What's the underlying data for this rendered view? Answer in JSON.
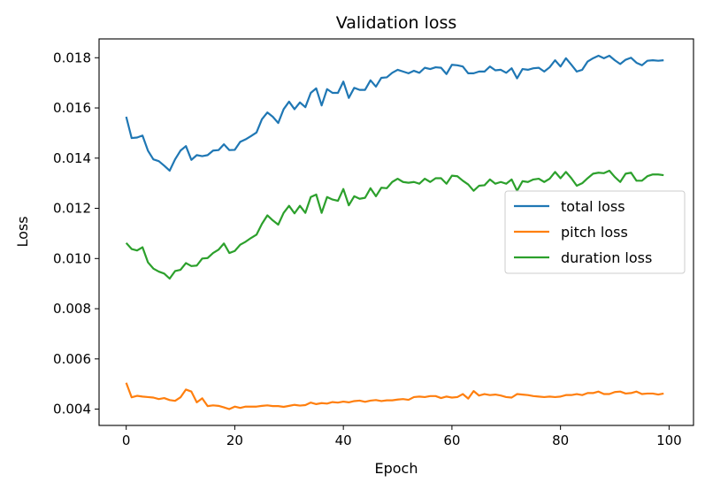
{
  "chart_data": {
    "type": "line",
    "title": "Validation loss",
    "xlabel": "Epoch",
    "ylabel": "Loss",
    "xlim": [
      -5,
      104.5
    ],
    "ylim": [
      0.00335,
      0.01875
    ],
    "xticks": [
      0,
      20,
      40,
      60,
      80,
      100
    ],
    "xtick_labels": [
      "0",
      "20",
      "40",
      "60",
      "80",
      "100"
    ],
    "yticks": [
      0.004,
      0.006,
      0.008,
      0.01,
      0.012,
      0.014,
      0.016,
      0.018
    ],
    "ytick_labels": [
      "0.004",
      "0.006",
      "0.008",
      "0.010",
      "0.012",
      "0.014",
      "0.016",
      "0.018"
    ],
    "grid": false,
    "legend_position": "center-right",
    "series": [
      {
        "name": "total loss",
        "color": "#1f77b4",
        "x": [
          0,
          1,
          2,
          3,
          4,
          5,
          6,
          7,
          8,
          9,
          10,
          11,
          12,
          13,
          14,
          15,
          16,
          17,
          18,
          19,
          20,
          21,
          22,
          23,
          24,
          25,
          26,
          27,
          28,
          29,
          30,
          31,
          32,
          33,
          34,
          35,
          36,
          37,
          38,
          39,
          40,
          41,
          42,
          43,
          44,
          45,
          46,
          47,
          48,
          49,
          50,
          51,
          52,
          53,
          54,
          55,
          56,
          57,
          58,
          59,
          60,
          61,
          62,
          63,
          64,
          65,
          66,
          67,
          68,
          69,
          70,
          71,
          72,
          73,
          74,
          75,
          76,
          77,
          78,
          79,
          80,
          81,
          82,
          83,
          84,
          85,
          86,
          87,
          88,
          89,
          90,
          91,
          92,
          93,
          94,
          95,
          96,
          97,
          98,
          99
        ],
        "values": [
          0.01565,
          0.0148,
          0.01482,
          0.0149,
          0.0143,
          0.01395,
          0.01388,
          0.0137,
          0.0135,
          0.01395,
          0.0143,
          0.01448,
          0.01393,
          0.01412,
          0.01408,
          0.01412,
          0.0143,
          0.01432,
          0.01455,
          0.01432,
          0.01433,
          0.01465,
          0.01475,
          0.01488,
          0.01502,
          0.01555,
          0.01582,
          0.01565,
          0.0154,
          0.01595,
          0.01625,
          0.01595,
          0.01622,
          0.01603,
          0.0166,
          0.01678,
          0.0161,
          0.01675,
          0.0166,
          0.0166,
          0.01705,
          0.0164,
          0.0168,
          0.01672,
          0.01672,
          0.0171,
          0.01685,
          0.0172,
          0.01722,
          0.0174,
          0.01752,
          0.01745,
          0.01738,
          0.01748,
          0.0174,
          0.0176,
          0.01755,
          0.01762,
          0.0176,
          0.01735,
          0.01772,
          0.0177,
          0.01765,
          0.01738,
          0.01738,
          0.01745,
          0.01745,
          0.01765,
          0.0175,
          0.01752,
          0.0174,
          0.01758,
          0.01718,
          0.01755,
          0.01752,
          0.01758,
          0.0176,
          0.01745,
          0.01762,
          0.0179,
          0.01765,
          0.01798,
          0.01772,
          0.01745,
          0.01752,
          0.01785,
          0.01798,
          0.01808,
          0.01798,
          0.01808,
          0.0179,
          0.01775,
          0.01792,
          0.018,
          0.0178,
          0.0177,
          0.01788,
          0.0179,
          0.01788,
          0.0179
        ]
      },
      {
        "name": "pitch loss",
        "color": "#ff7f0e",
        "x": [
          0,
          1,
          2,
          3,
          4,
          5,
          6,
          7,
          8,
          9,
          10,
          11,
          12,
          13,
          14,
          15,
          16,
          17,
          18,
          19,
          20,
          21,
          22,
          23,
          24,
          25,
          26,
          27,
          28,
          29,
          30,
          31,
          32,
          33,
          34,
          35,
          36,
          37,
          38,
          39,
          40,
          41,
          42,
          43,
          44,
          45,
          46,
          47,
          48,
          49,
          50,
          51,
          52,
          53,
          54,
          55,
          56,
          57,
          58,
          59,
          60,
          61,
          62,
          63,
          64,
          65,
          66,
          67,
          68,
          69,
          70,
          71,
          72,
          73,
          74,
          75,
          76,
          77,
          78,
          79,
          80,
          81,
          82,
          83,
          84,
          85,
          86,
          87,
          88,
          89,
          90,
          91,
          92,
          93,
          94,
          95,
          96,
          97,
          98,
          99
        ],
        "values": [
          0.00505,
          0.00447,
          0.00453,
          0.0045,
          0.00448,
          0.00446,
          0.0044,
          0.00444,
          0.00436,
          0.00433,
          0.00447,
          0.00478,
          0.0047,
          0.00427,
          0.00443,
          0.00412,
          0.00415,
          0.00413,
          0.00407,
          0.004,
          0.0041,
          0.00405,
          0.0041,
          0.0041,
          0.0041,
          0.00413,
          0.00415,
          0.00412,
          0.00412,
          0.00409,
          0.00413,
          0.00417,
          0.00414,
          0.00416,
          0.00426,
          0.0042,
          0.00424,
          0.00422,
          0.00428,
          0.00426,
          0.0043,
          0.00427,
          0.00432,
          0.00434,
          0.00429,
          0.00434,
          0.00436,
          0.00432,
          0.00435,
          0.00435,
          0.00438,
          0.0044,
          0.00437,
          0.00448,
          0.0045,
          0.00448,
          0.00452,
          0.00452,
          0.00444,
          0.0045,
          0.00446,
          0.00448,
          0.0046,
          0.00442,
          0.00472,
          0.00454,
          0.0046,
          0.00456,
          0.00458,
          0.00454,
          0.00448,
          0.00446,
          0.0046,
          0.00458,
          0.00456,
          0.00452,
          0.0045,
          0.00448,
          0.0045,
          0.00448,
          0.0045,
          0.00456,
          0.00456,
          0.0046,
          0.00456,
          0.00464,
          0.00464,
          0.0047,
          0.0046,
          0.0046,
          0.00468,
          0.0047,
          0.00462,
          0.00464,
          0.0047,
          0.0046,
          0.00462,
          0.00462,
          0.00458,
          0.00462
        ]
      },
      {
        "name": "duration loss",
        "color": "#2ca02c",
        "x": [
          0,
          1,
          2,
          3,
          4,
          5,
          6,
          7,
          8,
          9,
          10,
          11,
          12,
          13,
          14,
          15,
          16,
          17,
          18,
          19,
          20,
          21,
          22,
          23,
          24,
          25,
          26,
          27,
          28,
          29,
          30,
          31,
          32,
          33,
          34,
          35,
          36,
          37,
          38,
          39,
          40,
          41,
          42,
          43,
          44,
          45,
          46,
          47,
          48,
          49,
          50,
          51,
          52,
          53,
          54,
          55,
          56,
          57,
          58,
          59,
          60,
          61,
          62,
          63,
          64,
          65,
          66,
          67,
          68,
          69,
          70,
          71,
          72,
          73,
          74,
          75,
          76,
          77,
          78,
          79,
          80,
          81,
          82,
          83,
          84,
          85,
          86,
          87,
          88,
          89,
          90,
          91,
          92,
          93,
          94,
          95,
          96,
          97,
          98,
          99
        ],
        "values": [
          0.01062,
          0.01038,
          0.01032,
          0.01045,
          0.00985,
          0.0096,
          0.00948,
          0.0094,
          0.0092,
          0.0095,
          0.00955,
          0.00982,
          0.0097,
          0.00972,
          0.01,
          0.01002,
          0.01022,
          0.01035,
          0.0106,
          0.01022,
          0.0103,
          0.01055,
          0.01067,
          0.01082,
          0.01095,
          0.01138,
          0.01172,
          0.01152,
          0.01135,
          0.01182,
          0.0121,
          0.0118,
          0.0121,
          0.01182,
          0.01245,
          0.01255,
          0.01182,
          0.01245,
          0.01235,
          0.0123,
          0.01277,
          0.01212,
          0.01248,
          0.01238,
          0.01242,
          0.0128,
          0.01248,
          0.01282,
          0.0128,
          0.01305,
          0.01318,
          0.01305,
          0.01302,
          0.01305,
          0.01298,
          0.01318,
          0.01305,
          0.0132,
          0.0132,
          0.01298,
          0.0133,
          0.01328,
          0.0131,
          0.01295,
          0.0127,
          0.0129,
          0.01292,
          0.01315,
          0.01298,
          0.01305,
          0.01298,
          0.01315,
          0.0127,
          0.01308,
          0.01305,
          0.01315,
          0.01318,
          0.01305,
          0.01318,
          0.01345,
          0.0132,
          0.01345,
          0.0132,
          0.0129,
          0.013,
          0.0132,
          0.01338,
          0.01342,
          0.0134,
          0.0135,
          0.01325,
          0.01305,
          0.01338,
          0.01342,
          0.0131,
          0.0131,
          0.01328,
          0.01335,
          0.01335,
          0.01332
        ]
      }
    ]
  }
}
